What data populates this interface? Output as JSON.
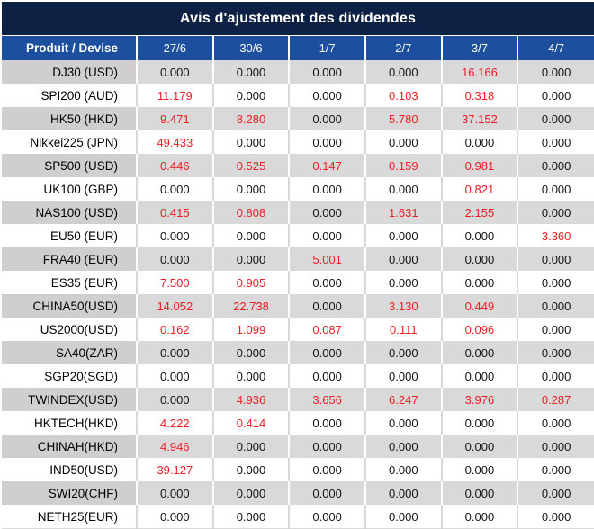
{
  "title": "Avis d'ajustement des dividendes",
  "colors": {
    "title_bg": "#0c2143",
    "header_bg": "#1d4f9f",
    "stripe_label_bg": "#d0cece",
    "stripe_cell_bg": "#d9d9d9",
    "separator_plain": "#d9d9d9",
    "zero_text": "#131313",
    "nonzero_text": "#ee1c25"
  },
  "chart_data": {
    "type": "table",
    "title": "Avis d'ajustement des dividendes",
    "product_header": "Produit / Devise",
    "date_headers": [
      "27/6",
      "30/6",
      "1/7",
      "2/7",
      "3/7",
      "4/7"
    ],
    "rows": [
      {
        "product": "DJ30 (USD)",
        "values": [
          "0.000",
          "0.000",
          "0.000",
          "0.000",
          "16.166",
          "0.000"
        ]
      },
      {
        "product": "SPI200 (AUD)",
        "values": [
          "11.179",
          "0.000",
          "0.000",
          "0.103",
          "0.318",
          "0.000"
        ]
      },
      {
        "product": "HK50 (HKD)",
        "values": [
          "9.471",
          "8.280",
          "0.000",
          "5.780",
          "37.152",
          "0.000"
        ]
      },
      {
        "product": "Nikkei225 (JPN)",
        "values": [
          "49.433",
          "0.000",
          "0.000",
          "0.000",
          "0.000",
          "0.000"
        ]
      },
      {
        "product": "SP500 (USD)",
        "values": [
          "0.446",
          "0.525",
          "0.147",
          "0.159",
          "0.981",
          "0.000"
        ]
      },
      {
        "product": "UK100 (GBP)",
        "values": [
          "0.000",
          "0.000",
          "0.000",
          "0.000",
          "0.821",
          "0.000"
        ]
      },
      {
        "product": "NAS100 (USD)",
        "values": [
          "0.415",
          "0.808",
          "0.000",
          "1.631",
          "2.155",
          "0.000"
        ]
      },
      {
        "product": "EU50 (EUR)",
        "values": [
          "0.000",
          "0.000",
          "0.000",
          "0.000",
          "0.000",
          "3.360"
        ]
      },
      {
        "product": "FRA40 (EUR)",
        "values": [
          "0.000",
          "0.000",
          "5.001",
          "0.000",
          "0.000",
          "0.000"
        ]
      },
      {
        "product": "ES35 (EUR)",
        "values": [
          "7.500",
          "0.905",
          "0.000",
          "0.000",
          "0.000",
          "0.000"
        ]
      },
      {
        "product": "CHINA50(USD)",
        "values": [
          "14.052",
          "22.738",
          "0.000",
          "3.130",
          "0.449",
          "0.000"
        ]
      },
      {
        "product": "US2000(USD)",
        "values": [
          "0.162",
          "1.099",
          "0.087",
          "0.111",
          "0.096",
          "0.000"
        ]
      },
      {
        "product": "SA40(ZAR)",
        "values": [
          "0.000",
          "0.000",
          "0.000",
          "0.000",
          "0.000",
          "0.000"
        ]
      },
      {
        "product": "SGP20(SGD)",
        "values": [
          "0.000",
          "0.000",
          "0.000",
          "0.000",
          "0.000",
          "0.000"
        ]
      },
      {
        "product": "TWINDEX(USD)",
        "values": [
          "0.000",
          "4.936",
          "3.656",
          "6.247",
          "3.976",
          "0.287"
        ]
      },
      {
        "product": "HKTECH(HKD)",
        "values": [
          "4.222",
          "0.414",
          "0.000",
          "0.000",
          "0.000",
          "0.000"
        ]
      },
      {
        "product": "CHINAH(HKD)",
        "values": [
          "4.946",
          "0.000",
          "0.000",
          "0.000",
          "0.000",
          "0.000"
        ]
      },
      {
        "product": "IND50(USD)",
        "values": [
          "39.127",
          "0.000",
          "0.000",
          "0.000",
          "0.000",
          "0.000"
        ]
      },
      {
        "product": "SWI20(CHF)",
        "values": [
          "0.000",
          "0.000",
          "0.000",
          "0.000",
          "0.000",
          "0.000"
        ]
      },
      {
        "product": "NETH25(EUR)",
        "values": [
          "0.000",
          "0.000",
          "0.000",
          "0.000",
          "0.000",
          "0.000"
        ]
      }
    ]
  }
}
